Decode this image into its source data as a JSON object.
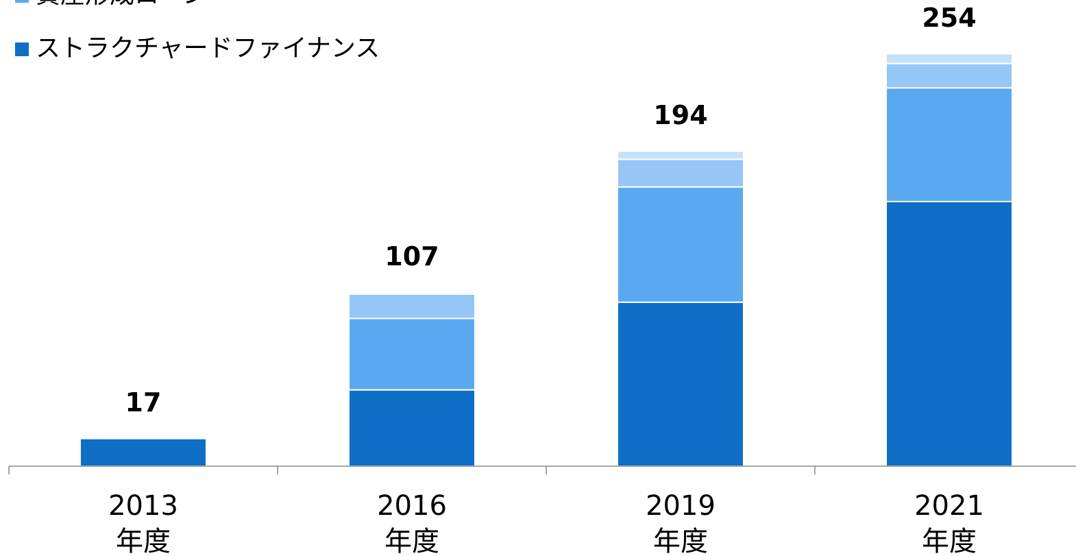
{
  "chart_data": {
    "type": "stacked_bar",
    "categories": [
      "2013\n年度",
      "2016\n年度",
      "2019\n年度",
      "2021\n年度"
    ],
    "series": [
      {
        "name": "ストラクチャードファイナンス",
        "color": "#0f6fc6",
        "values": [
          17,
          47,
          101,
          163
        ]
      },
      {
        "name": "資産形成ローン",
        "color": "#5aa9f0",
        "values": [
          0,
          44,
          71,
          70
        ]
      },
      {
        "color": "#95c6f5",
        "values": [
          0,
          15,
          17,
          15
        ]
      },
      {
        "color": "#c5e0fa",
        "values": [
          0,
          1,
          5,
          6
        ]
      }
    ],
    "totals": [
      17,
      107,
      194,
      254
    ],
    "ylim": [
      0,
      285
    ]
  }
}
